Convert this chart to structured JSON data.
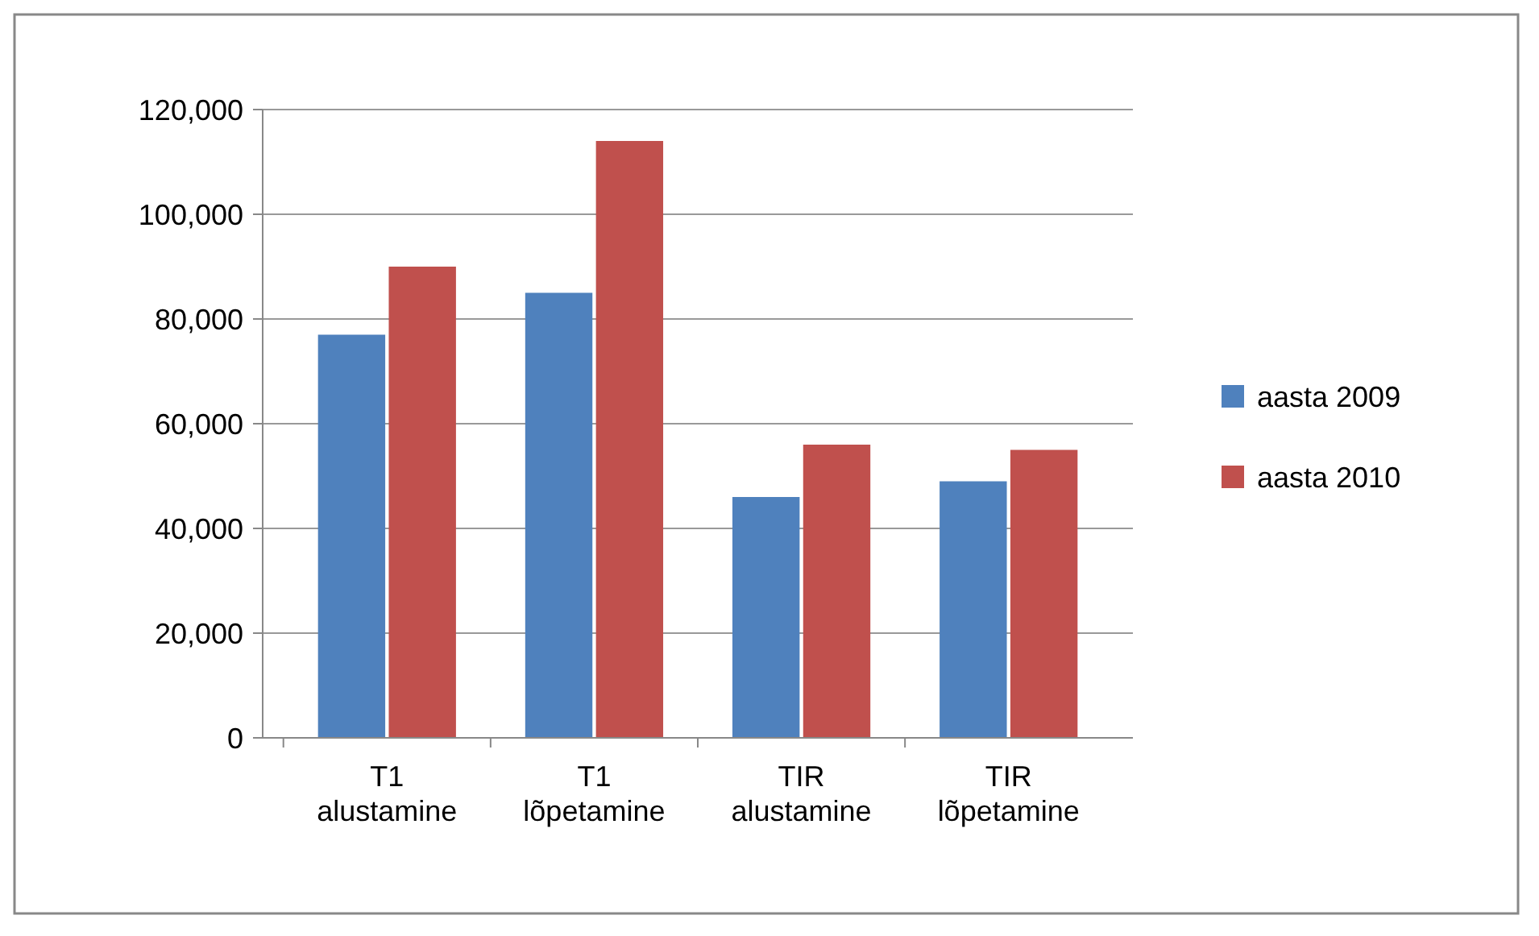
{
  "chart_data": {
    "type": "bar",
    "categories": [
      "T1\nalustamine",
      "T1\nlõpetamine",
      "TIR\nalustamine",
      "TIR\nlõpetamine"
    ],
    "series": [
      {
        "name": "aasta 2009",
        "color": "#4f81bd",
        "values": [
          77000,
          85000,
          46000,
          49000
        ]
      },
      {
        "name": "aasta 2010",
        "color": "#c0504d",
        "values": [
          90000,
          114000,
          56000,
          55000
        ]
      }
    ],
    "ylim": [
      0,
      120000
    ],
    "yticks": [
      {
        "value": 0,
        "label": "0"
      },
      {
        "value": 20000,
        "label": "20,000"
      },
      {
        "value": 40000,
        "label": "40,000"
      },
      {
        "value": 60000,
        "label": "60,000"
      },
      {
        "value": 80000,
        "label": "80,000"
      },
      {
        "value": 100000,
        "label": "100,000"
      },
      {
        "value": 120000,
        "label": "120,000"
      }
    ],
    "grid": true,
    "legend": "right"
  }
}
